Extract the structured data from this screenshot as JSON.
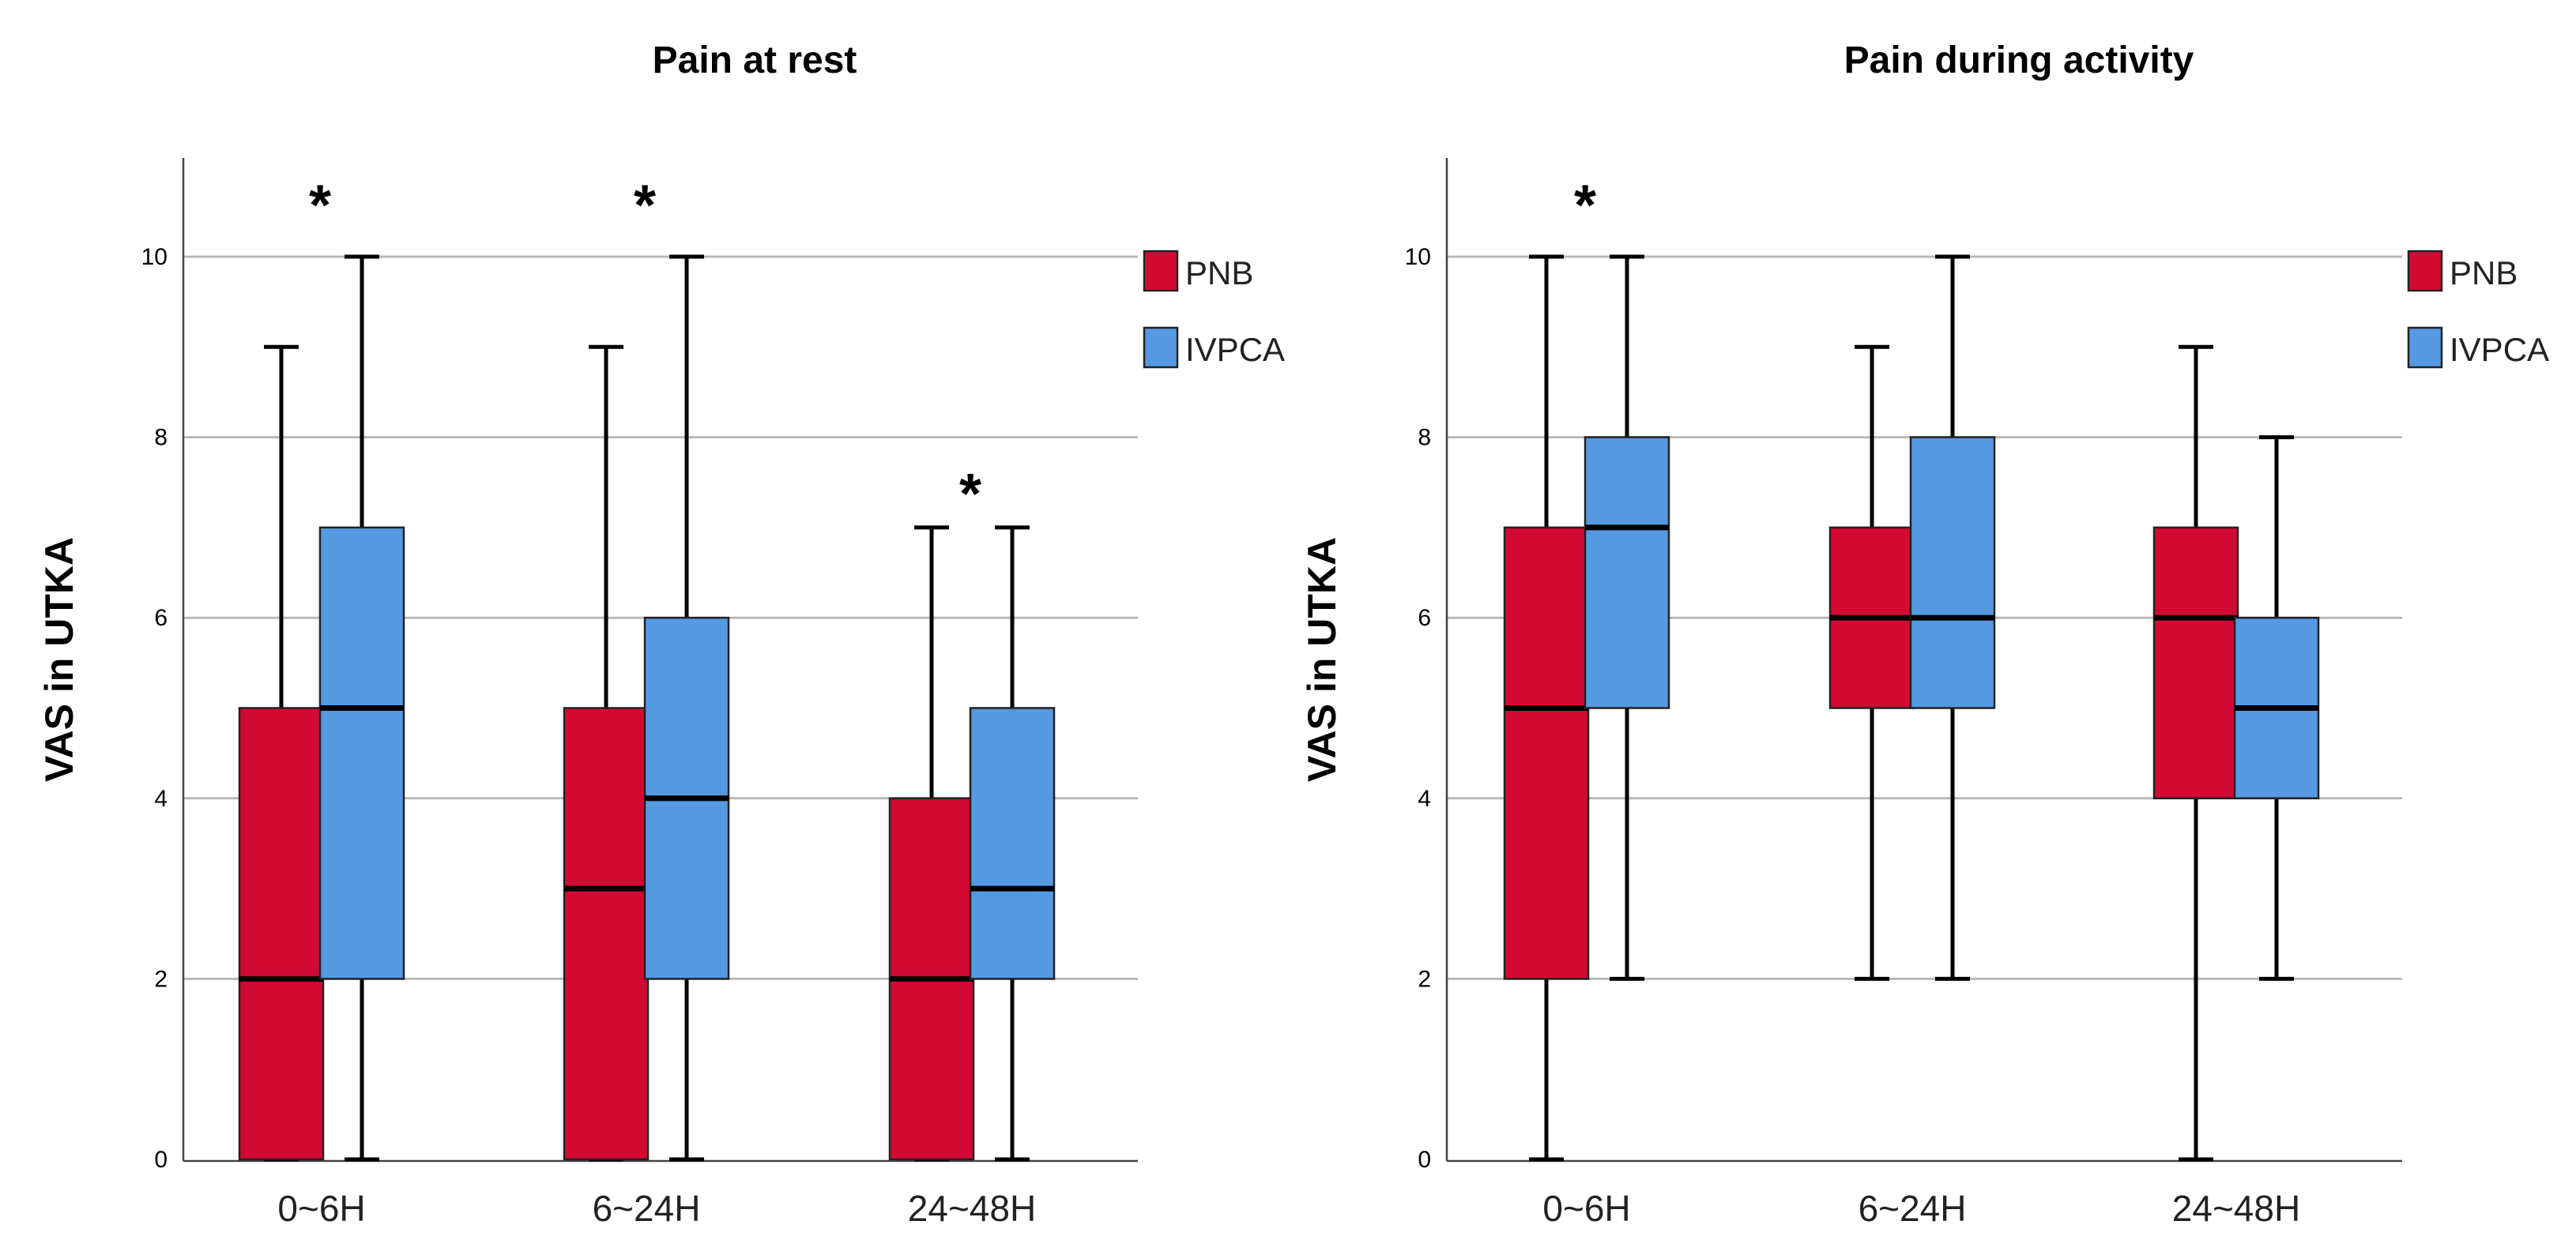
{
  "colors": {
    "PNB": "#D20A33",
    "IVPCA": "#5599E2",
    "grid": "#b9b9b9",
    "whisker": "#000000"
  },
  "chart_data": [
    {
      "type": "boxplot",
      "title": "Pain at rest",
      "ylabel": "VAS in UTKA",
      "xlabel": "",
      "ylim": [
        0,
        11
      ],
      "yticks": [
        "0",
        "2",
        "4",
        "6",
        "8",
        "10"
      ],
      "categories": [
        "0~6H",
        "6~24H",
        "24~48H"
      ],
      "legend": [
        "PNB",
        "IVPCA"
      ],
      "legend_position": "top-right",
      "grid": true,
      "series": [
        {
          "name": "PNB",
          "boxes": [
            {
              "min": 0,
              "q1": 0,
              "median": 2,
              "q3": 5,
              "max": 9
            },
            {
              "min": 0,
              "q1": 0,
              "median": 3,
              "q3": 5,
              "max": 9
            },
            {
              "min": 0,
              "q1": 0,
              "median": 2,
              "q3": 4,
              "max": 7
            }
          ]
        },
        {
          "name": "IVPCA",
          "boxes": [
            {
              "min": 0,
              "q1": 2,
              "median": 5,
              "q3": 7,
              "max": 10
            },
            {
              "min": 0,
              "q1": 2,
              "median": 4,
              "q3": 6,
              "max": 10
            },
            {
              "min": 0,
              "q1": 2,
              "median": 3,
              "q3": 5,
              "max": 7
            }
          ]
        }
      ],
      "annotations": [
        {
          "text": "*",
          "category": "0~6H",
          "y": 10.6
        },
        {
          "text": "*",
          "category": "6~24H",
          "y": 10.6
        },
        {
          "text": "*",
          "category": "24~48H",
          "y": 7.4
        }
      ]
    },
    {
      "type": "boxplot",
      "title": "Pain during activity",
      "ylabel": "VAS in UTKA",
      "xlabel": "",
      "ylim": [
        0,
        11
      ],
      "yticks": [
        "0",
        "2",
        "4",
        "6",
        "8",
        "10"
      ],
      "categories": [
        "0~6H",
        "6~24H",
        "24~48H"
      ],
      "legend": [
        "PNB",
        "IVPCA"
      ],
      "legend_position": "top-right",
      "grid": true,
      "series": [
        {
          "name": "PNB",
          "boxes": [
            {
              "min": 0,
              "q1": 2,
              "median": 5,
              "q3": 7,
              "max": 10
            },
            {
              "min": 2,
              "q1": 5,
              "median": 6,
              "q3": 7,
              "max": 9
            },
            {
              "min": 0,
              "q1": 4,
              "median": 6,
              "q3": 7,
              "max": 9
            }
          ]
        },
        {
          "name": "IVPCA",
          "boxes": [
            {
              "min": 2,
              "q1": 5,
              "median": 7,
              "q3": 8,
              "max": 10
            },
            {
              "min": 2,
              "q1": 5,
              "median": 6,
              "q3": 8,
              "max": 10
            },
            {
              "min": 2,
              "q1": 4,
              "median": 5,
              "q3": 6,
              "max": 8
            }
          ]
        }
      ],
      "annotations": [
        {
          "text": "*",
          "category": "0~6H",
          "y": 10.6
        }
      ]
    }
  ]
}
